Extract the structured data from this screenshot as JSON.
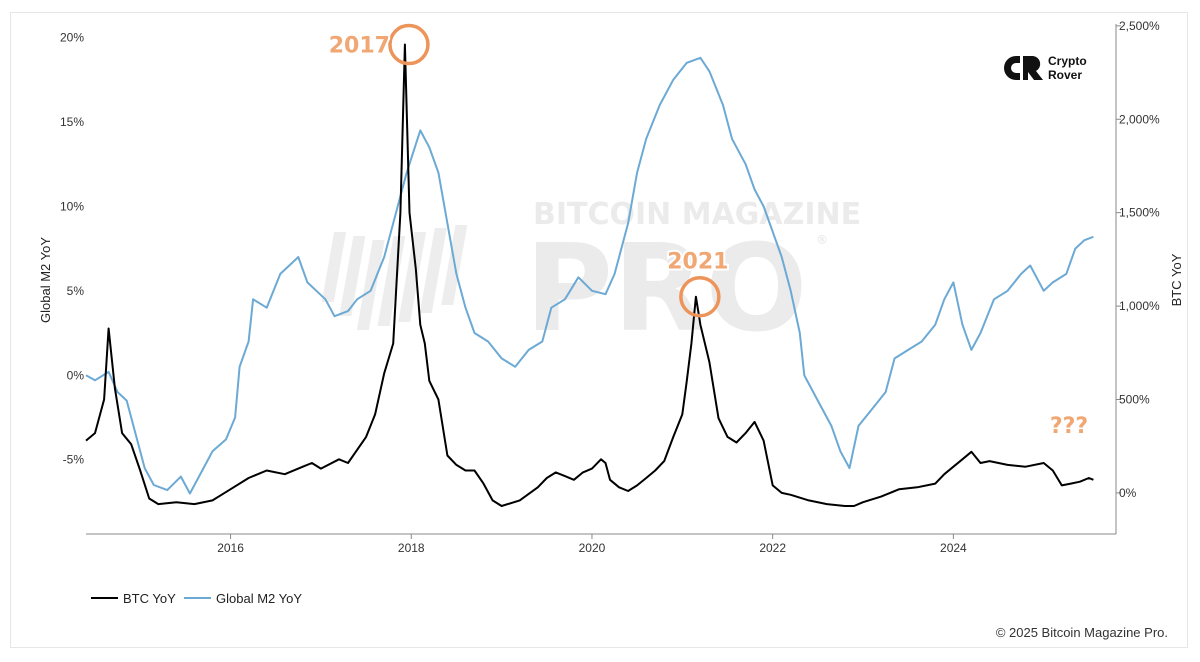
{
  "chart_data": {
    "type": "line",
    "y_left": {
      "label": "Global M2 YoY",
      "ticks": [
        "20%",
        "15%",
        "10%",
        "5%",
        "0%",
        "-5%"
      ],
      "tick_values": [
        20,
        15,
        10,
        5,
        0,
        -5
      ],
      "range": [
        -9.4,
        20.8
      ]
    },
    "y_right": {
      "label": "BTC YoY",
      "ticks": [
        "2,500%",
        "2,000%",
        "1,500%",
        "1,000%",
        "500%",
        "0%"
      ],
      "tick_values": [
        2500,
        2000,
        1500,
        1000,
        500,
        0
      ],
      "range": [
        -220,
        2510
      ]
    },
    "x_axis": {
      "ticks": [
        "2016",
        "2018",
        "2020",
        "2022",
        "2024"
      ],
      "tick_values": [
        2016,
        2018,
        2020,
        2022,
        2024
      ],
      "range": [
        2014.4,
        2025.8
      ]
    },
    "series": [
      {
        "name": "BTC YoY",
        "axis": "right",
        "color": "#000000",
        "points": [
          [
            2014.4,
            280
          ],
          [
            2014.5,
            320
          ],
          [
            2014.6,
            500
          ],
          [
            2014.65,
            880
          ],
          [
            2014.72,
            560
          ],
          [
            2014.8,
            320
          ],
          [
            2014.9,
            260
          ],
          [
            2015.0,
            120
          ],
          [
            2015.1,
            -30
          ],
          [
            2015.2,
            -60
          ],
          [
            2015.4,
            -50
          ],
          [
            2015.6,
            -60
          ],
          [
            2015.8,
            -40
          ],
          [
            2015.9,
            -10
          ],
          [
            2016.0,
            20
          ],
          [
            2016.2,
            80
          ],
          [
            2016.4,
            120
          ],
          [
            2016.6,
            100
          ],
          [
            2016.8,
            140
          ],
          [
            2016.9,
            160
          ],
          [
            2017.0,
            130
          ],
          [
            2017.2,
            180
          ],
          [
            2017.3,
            160
          ],
          [
            2017.5,
            300
          ],
          [
            2017.6,
            420
          ],
          [
            2017.7,
            640
          ],
          [
            2017.8,
            800
          ],
          [
            2017.88,
            1500
          ],
          [
            2017.93,
            2400
          ],
          [
            2017.98,
            1500
          ],
          [
            2018.05,
            1200
          ],
          [
            2018.1,
            900
          ],
          [
            2018.15,
            800
          ],
          [
            2018.2,
            600
          ],
          [
            2018.3,
            500
          ],
          [
            2018.4,
            200
          ],
          [
            2018.5,
            150
          ],
          [
            2018.6,
            120
          ],
          [
            2018.7,
            120
          ],
          [
            2018.8,
            50
          ],
          [
            2018.9,
            -40
          ],
          [
            2019.0,
            -70
          ],
          [
            2019.2,
            -40
          ],
          [
            2019.4,
            30
          ],
          [
            2019.5,
            80
          ],
          [
            2019.6,
            110
          ],
          [
            2019.7,
            90
          ],
          [
            2019.8,
            70
          ],
          [
            2019.9,
            110
          ],
          [
            2020.0,
            130
          ],
          [
            2020.1,
            180
          ],
          [
            2020.15,
            160
          ],
          [
            2020.2,
            70
          ],
          [
            2020.3,
            30
          ],
          [
            2020.4,
            10
          ],
          [
            2020.5,
            40
          ],
          [
            2020.6,
            80
          ],
          [
            2020.7,
            120
          ],
          [
            2020.8,
            170
          ],
          [
            2020.9,
            300
          ],
          [
            2021.0,
            420
          ],
          [
            2021.05,
            600
          ],
          [
            2021.1,
            800
          ],
          [
            2021.15,
            1050
          ],
          [
            2021.2,
            900
          ],
          [
            2021.3,
            700
          ],
          [
            2021.4,
            400
          ],
          [
            2021.5,
            300
          ],
          [
            2021.6,
            270
          ],
          [
            2021.7,
            320
          ],
          [
            2021.8,
            380
          ],
          [
            2021.9,
            280
          ],
          [
            2022.0,
            40
          ],
          [
            2022.1,
            0
          ],
          [
            2022.2,
            -10
          ],
          [
            2022.4,
            -40
          ],
          [
            2022.6,
            -60
          ],
          [
            2022.8,
            -70
          ],
          [
            2022.9,
            -70
          ],
          [
            2023.0,
            -50
          ],
          [
            2023.2,
            -20
          ],
          [
            2023.4,
            20
          ],
          [
            2023.6,
            30
          ],
          [
            2023.8,
            50
          ],
          [
            2023.9,
            100
          ],
          [
            2024.0,
            140
          ],
          [
            2024.1,
            180
          ],
          [
            2024.2,
            220
          ],
          [
            2024.3,
            160
          ],
          [
            2024.4,
            170
          ],
          [
            2024.6,
            150
          ],
          [
            2024.8,
            140
          ],
          [
            2025.0,
            160
          ],
          [
            2025.1,
            120
          ],
          [
            2025.2,
            40
          ],
          [
            2025.3,
            50
          ],
          [
            2025.4,
            60
          ],
          [
            2025.5,
            80
          ],
          [
            2025.55,
            70
          ]
        ]
      },
      {
        "name": "Global M2 YoY",
        "axis": "left",
        "color": "#6ca9d4",
        "points": [
          [
            2014.4,
            0.0
          ],
          [
            2014.5,
            -0.3
          ],
          [
            2014.65,
            0.2
          ],
          [
            2014.75,
            -1.0
          ],
          [
            2014.85,
            -1.5
          ],
          [
            2014.95,
            -3.5
          ],
          [
            2015.05,
            -5.5
          ],
          [
            2015.15,
            -6.5
          ],
          [
            2015.3,
            -6.8
          ],
          [
            2015.45,
            -6.0
          ],
          [
            2015.55,
            -7.0
          ],
          [
            2015.7,
            -5.5
          ],
          [
            2015.8,
            -4.5
          ],
          [
            2015.95,
            -3.8
          ],
          [
            2016.05,
            -2.5
          ],
          [
            2016.1,
            0.5
          ],
          [
            2016.2,
            2.0
          ],
          [
            2016.25,
            4.5
          ],
          [
            2016.4,
            4.0
          ],
          [
            2016.55,
            6.0
          ],
          [
            2016.65,
            6.5
          ],
          [
            2016.75,
            7.0
          ],
          [
            2016.85,
            5.5
          ],
          [
            2016.95,
            5.0
          ],
          [
            2017.05,
            4.5
          ],
          [
            2017.15,
            3.5
          ],
          [
            2017.3,
            3.8
          ],
          [
            2017.4,
            4.5
          ],
          [
            2017.55,
            5.0
          ],
          [
            2017.7,
            7.0
          ],
          [
            2017.85,
            10.0
          ],
          [
            2017.95,
            12.0
          ],
          [
            2018.1,
            14.5
          ],
          [
            2018.2,
            13.5
          ],
          [
            2018.3,
            12.0
          ],
          [
            2018.4,
            9.0
          ],
          [
            2018.5,
            6.0
          ],
          [
            2018.6,
            4.0
          ],
          [
            2018.7,
            2.5
          ],
          [
            2018.85,
            2.0
          ],
          [
            2019.0,
            1.0
          ],
          [
            2019.15,
            0.5
          ],
          [
            2019.3,
            1.5
          ],
          [
            2019.45,
            2.0
          ],
          [
            2019.55,
            4.0
          ],
          [
            2019.7,
            4.5
          ],
          [
            2019.85,
            5.8
          ],
          [
            2020.0,
            5.0
          ],
          [
            2020.15,
            4.8
          ],
          [
            2020.25,
            6.0
          ],
          [
            2020.4,
            9.0
          ],
          [
            2020.5,
            12.0
          ],
          [
            2020.6,
            14.0
          ],
          [
            2020.75,
            16.0
          ],
          [
            2020.9,
            17.5
          ],
          [
            2021.05,
            18.5
          ],
          [
            2021.2,
            18.8
          ],
          [
            2021.3,
            18.0
          ],
          [
            2021.45,
            16.0
          ],
          [
            2021.55,
            14.0
          ],
          [
            2021.7,
            12.5
          ],
          [
            2021.8,
            11.0
          ],
          [
            2021.9,
            10.0
          ],
          [
            2022.0,
            8.5
          ],
          [
            2022.1,
            7.0
          ],
          [
            2022.2,
            5.0
          ],
          [
            2022.3,
            2.5
          ],
          [
            2022.35,
            0.0
          ],
          [
            2022.5,
            -1.5
          ],
          [
            2022.65,
            -3.0
          ],
          [
            2022.75,
            -4.5
          ],
          [
            2022.85,
            -5.5
          ],
          [
            2022.95,
            -3.0
          ],
          [
            2023.1,
            -2.0
          ],
          [
            2023.25,
            -1.0
          ],
          [
            2023.35,
            1.0
          ],
          [
            2023.5,
            1.5
          ],
          [
            2023.65,
            2.0
          ],
          [
            2023.8,
            3.0
          ],
          [
            2023.9,
            4.5
          ],
          [
            2024.0,
            5.5
          ],
          [
            2024.1,
            3.0
          ],
          [
            2024.2,
            1.5
          ],
          [
            2024.3,
            2.5
          ],
          [
            2024.45,
            4.5
          ],
          [
            2024.6,
            5.0
          ],
          [
            2024.75,
            6.0
          ],
          [
            2024.85,
            6.5
          ],
          [
            2025.0,
            5.0
          ],
          [
            2025.1,
            5.5
          ],
          [
            2025.25,
            6.0
          ],
          [
            2025.35,
            7.5
          ],
          [
            2025.45,
            8.0
          ],
          [
            2025.55,
            8.2
          ]
        ]
      }
    ],
    "annotations": [
      {
        "text": "2017",
        "x": 2017.93,
        "y_right": 2400
      },
      {
        "text": "2021",
        "x": 2021.15,
        "y_right": 1050
      },
      {
        "text": "???",
        "x": 2025.4,
        "y_right": 320
      }
    ],
    "legend": {
      "placement": "bottom-left",
      "items": [
        "BTC YoY",
        "Global M2 YoY"
      ]
    },
    "grid": false
  },
  "watermark": {
    "top": "BITCOIN MAGAZINE",
    "big": "PRO",
    "mark": "®"
  },
  "brand": {
    "line1": "Crypto",
    "line2": "Rover"
  },
  "copyright": "© 2025 Bitcoin Magazine Pro."
}
